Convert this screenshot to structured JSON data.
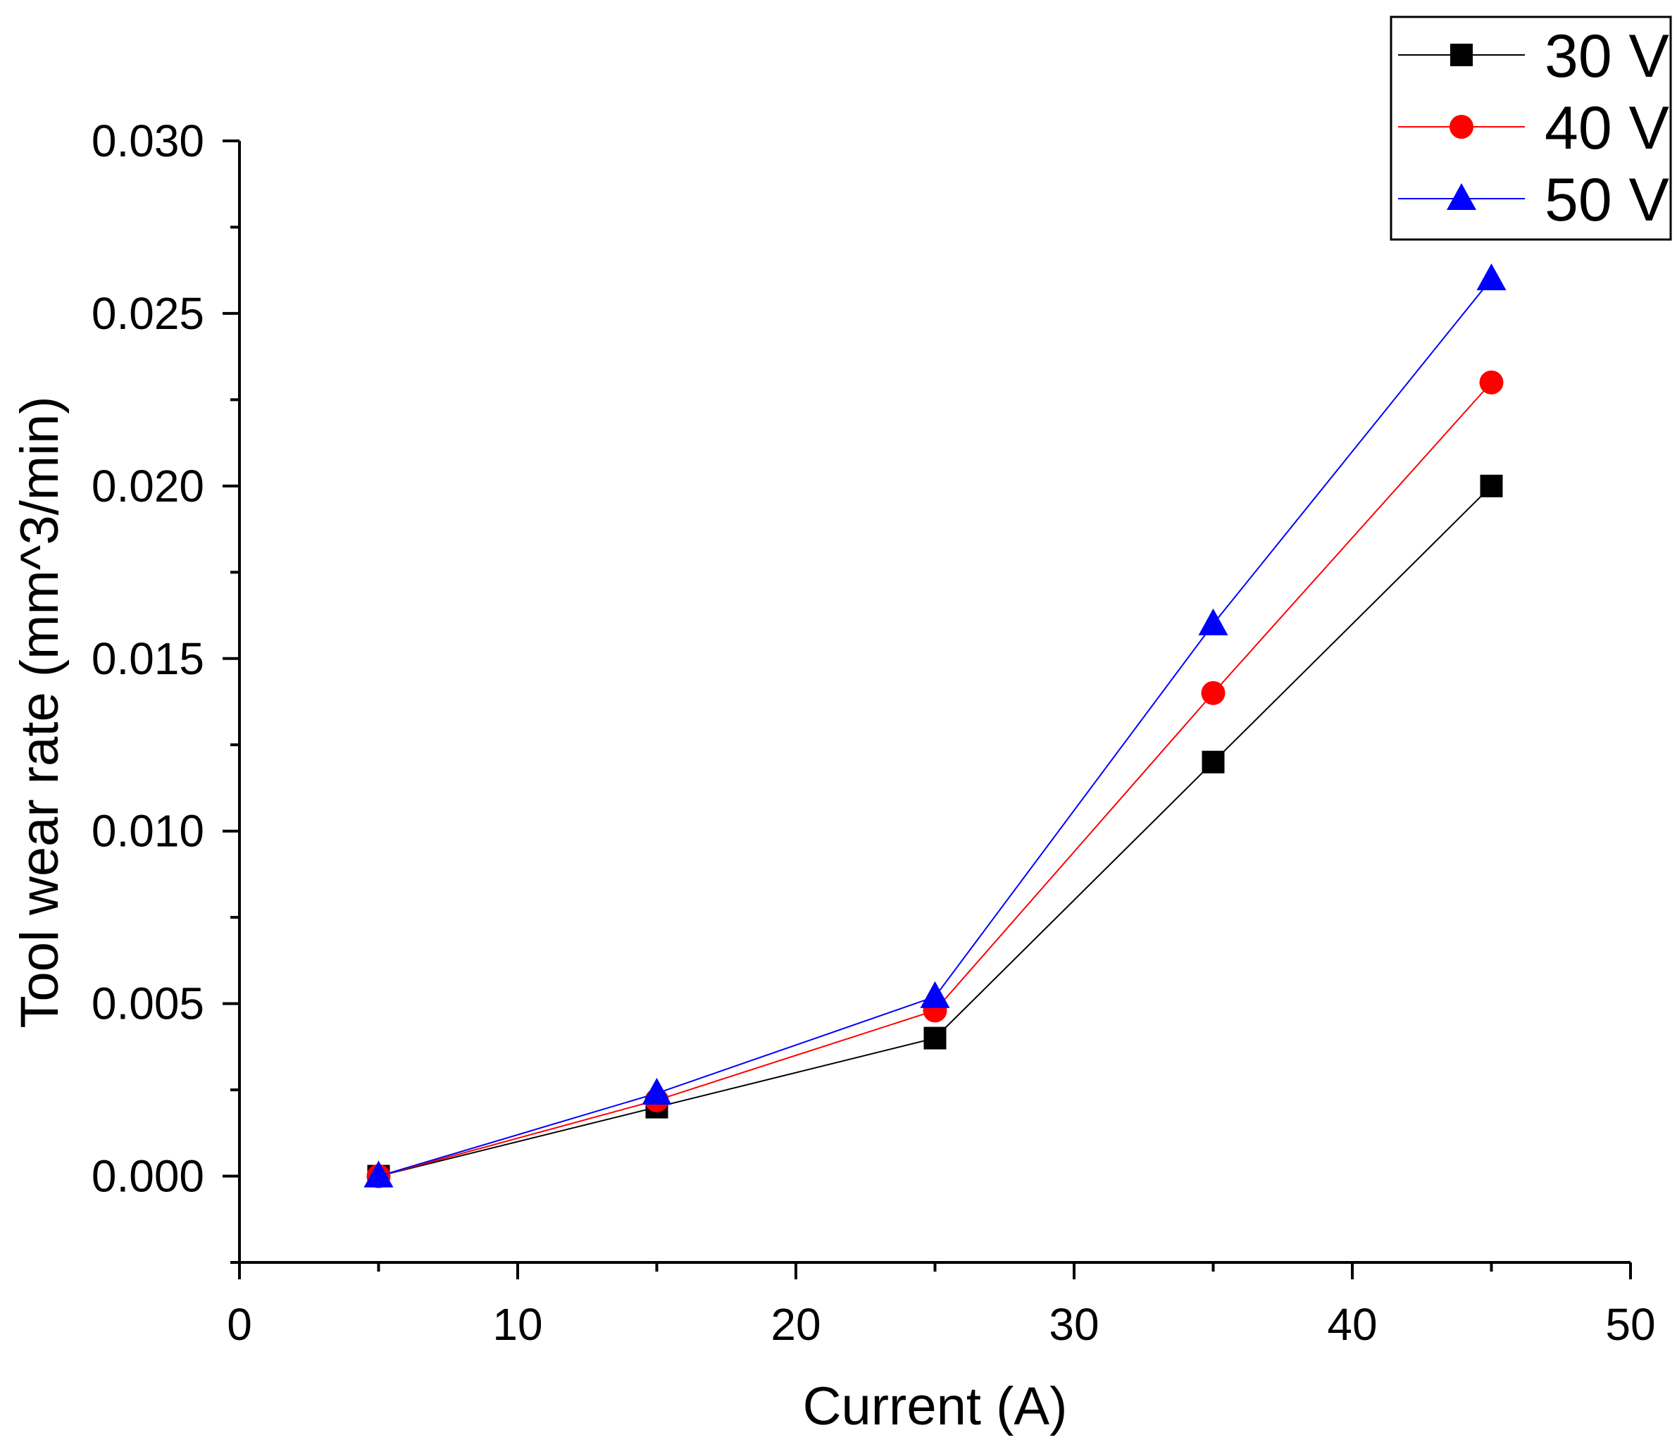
{
  "chart_data": {
    "type": "line",
    "title": "",
    "xlabel": "Current (A)",
    "ylabel": "Tool wear rate (mm^3/min)",
    "xlim": [
      0,
      50
    ],
    "ylim": [
      -0.0025,
      0.03
    ],
    "xticks": [
      0,
      10,
      20,
      30,
      40,
      50
    ],
    "xtick_labels": [
      "0",
      "10",
      "20",
      "30",
      "40",
      "50"
    ],
    "yticks": [
      0.0,
      0.005,
      0.01,
      0.015,
      0.02,
      0.025,
      0.03
    ],
    "ytick_labels": [
      "0.000",
      "0.005",
      "0.010",
      "0.015",
      "0.020",
      "0.025",
      "0.030"
    ],
    "grid": false,
    "legend_position": "top-right",
    "x": [
      5,
      15,
      25,
      35,
      45
    ],
    "series": [
      {
        "name": "30 V",
        "values": [
          0.0,
          0.002,
          0.004,
          0.012,
          0.02
        ],
        "color": "#000000",
        "marker": "square"
      },
      {
        "name": "40 V",
        "values": [
          0.0,
          0.0022,
          0.0048,
          0.014,
          0.023
        ],
        "color": "#ff0000",
        "marker": "circle"
      },
      {
        "name": "50 V",
        "values": [
          0.0,
          0.0024,
          0.0052,
          0.016,
          0.026
        ],
        "color": "#0000ff",
        "marker": "triangle"
      }
    ]
  }
}
